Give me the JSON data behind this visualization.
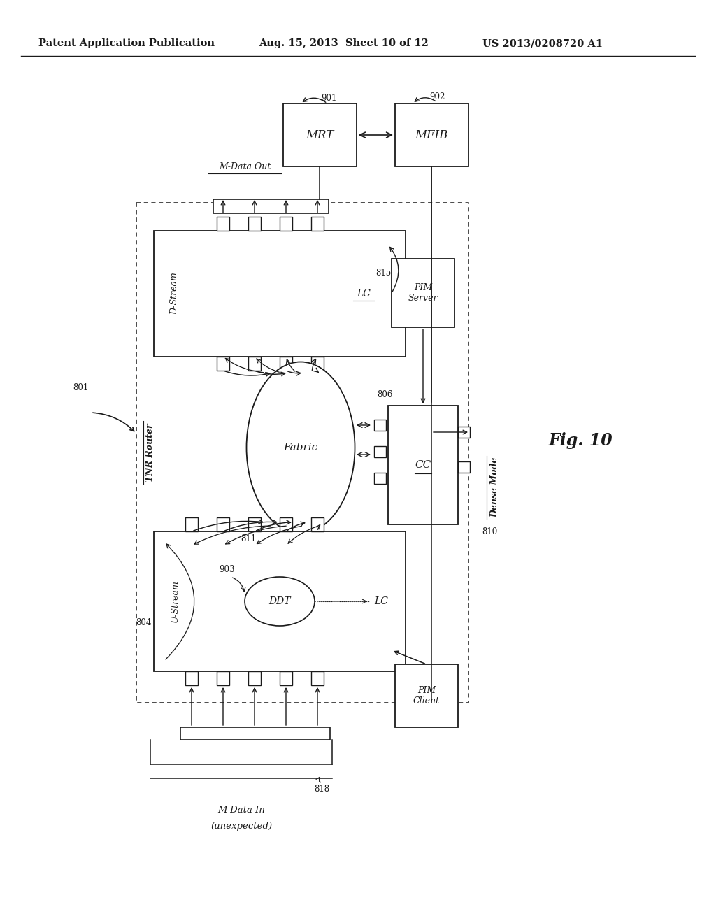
{
  "title_left": "Patent Application Publication",
  "title_mid": "Aug. 15, 2013  Sheet 10 of 12",
  "title_right": "US 2013/0208720 A1",
  "fig_label": "Fig. 10",
  "background_color": "#ffffff",
  "text_color": "#1a1a1a"
}
